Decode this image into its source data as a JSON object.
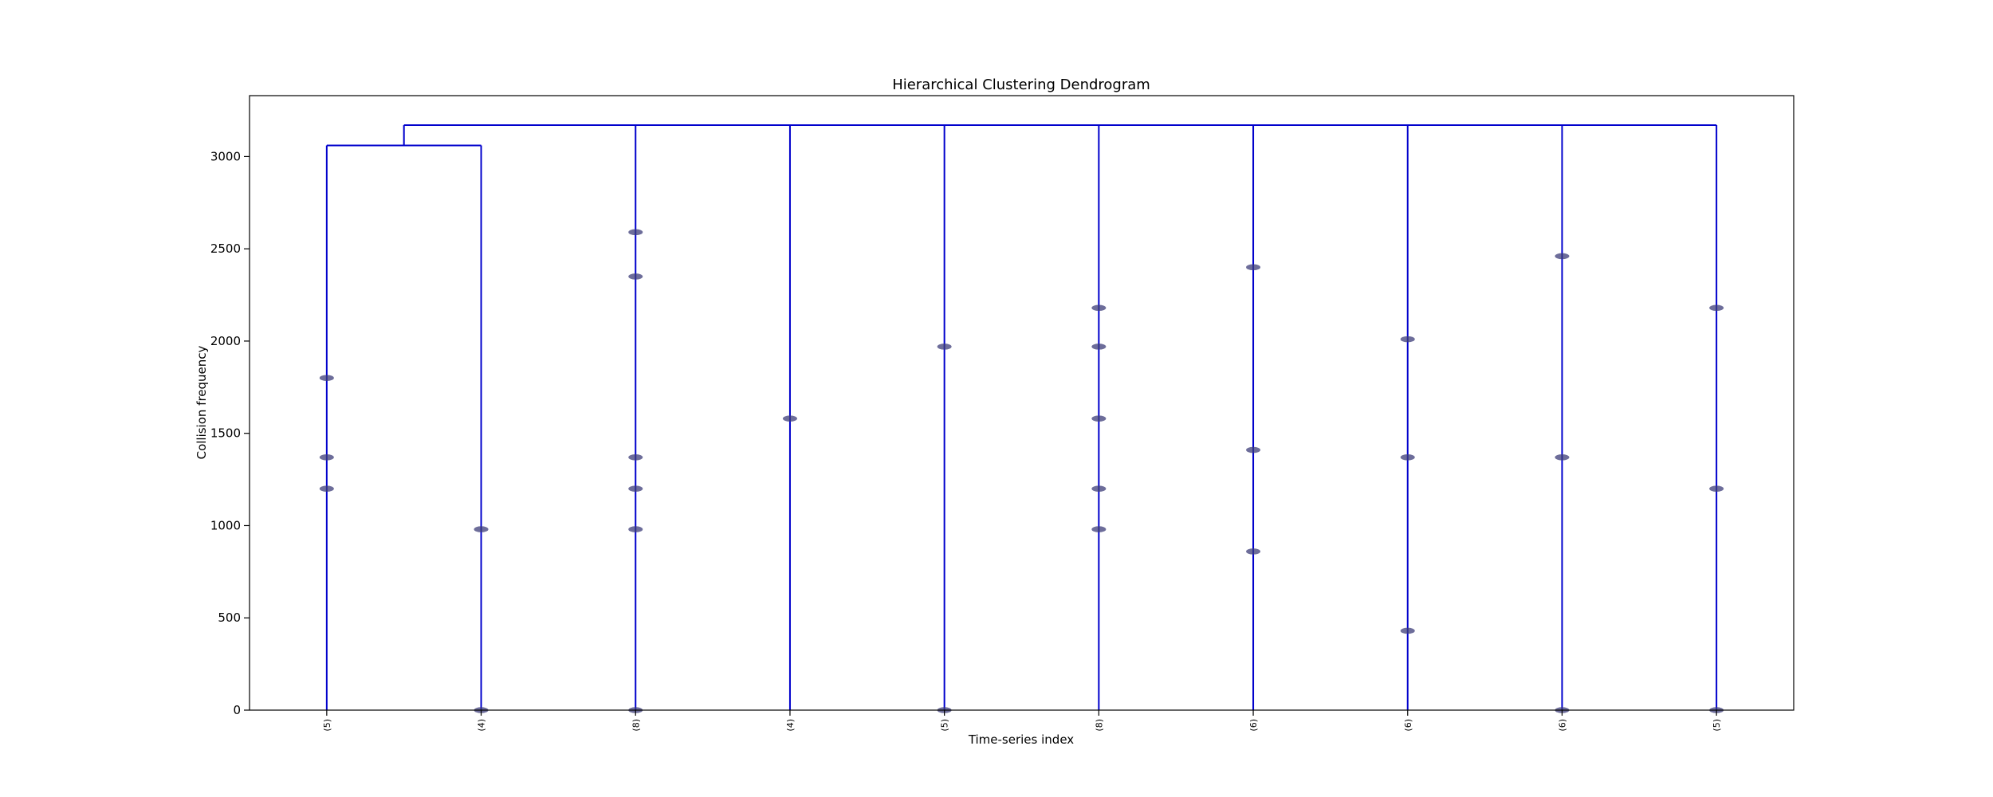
{
  "chart_data": {
    "type": "dendrogram",
    "title": "Hierarchical Clustering Dendrogram",
    "xlabel": "Time-series index",
    "ylabel": "Collision frequency",
    "ylim": [
      0,
      3330
    ],
    "yticks": [
      0,
      500,
      1000,
      1500,
      2000,
      2500,
      3000
    ],
    "link_color": "#0000cc",
    "marker_color": "#3c3c78",
    "leaves": [
      {
        "label": "(5)",
        "points": [
          1800,
          1370,
          1200
        ]
      },
      {
        "label": "(4)",
        "points": [
          980,
          0
        ]
      },
      {
        "label": "(8)",
        "points": [
          2590,
          2350,
          1370,
          1200,
          980,
          0
        ]
      },
      {
        "label": "(4)",
        "points": [
          1580
        ]
      },
      {
        "label": "(5)",
        "points": [
          1970,
          0
        ]
      },
      {
        "label": "(8)",
        "points": [
          2180,
          1970,
          1580,
          1200,
          980
        ]
      },
      {
        "label": "(6)",
        "points": [
          2400,
          1410,
          860
        ]
      },
      {
        "label": "(6)",
        "points": [
          2010,
          1370,
          430
        ]
      },
      {
        "label": "(6)",
        "points": [
          2460,
          1370,
          0
        ]
      },
      {
        "label": "(5)",
        "points": [
          2180,
          1200,
          0
        ]
      }
    ],
    "links": [
      {
        "left_leaf": 0,
        "right_leaf": 1,
        "height": 3060
      },
      {
        "left_cluster": "leaves 0-1",
        "right_leaves": [
          2,
          3,
          4,
          5,
          6,
          7,
          8,
          9
        ],
        "height": 3170
      }
    ]
  }
}
